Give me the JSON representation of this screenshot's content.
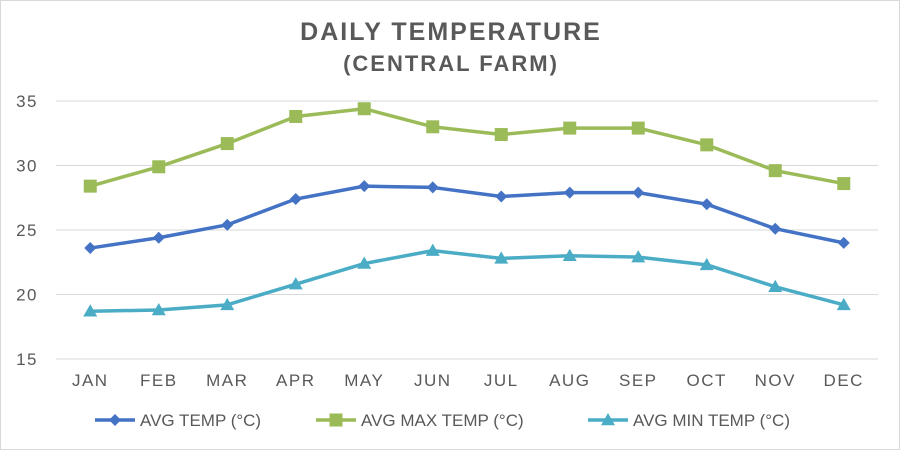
{
  "chart_data": {
    "type": "line",
    "title": "DAILY TEMPERATURE",
    "subtitle": "(CENTRAL FARM)",
    "categories": [
      "JAN",
      "FEB",
      "MAR",
      "APR",
      "MAY",
      "JUN",
      "JUL",
      "AUG",
      "SEP",
      "OCT",
      "NOV",
      "DEC"
    ],
    "ylim": [
      15,
      35
    ],
    "yticks": [
      "15",
      "20",
      "25",
      "30",
      "35"
    ],
    "grid": true,
    "legend_position": "bottom",
    "series": [
      {
        "name": "AVG TEMP (°C)",
        "color": "#4472c4",
        "marker": "diamond",
        "values": [
          23.6,
          24.4,
          25.4,
          27.4,
          28.4,
          28.3,
          27.6,
          27.9,
          27.9,
          27.0,
          25.1,
          24.0
        ]
      },
      {
        "name": "AVG MAX TEMP (°C)",
        "color": "#9bbb59",
        "marker": "square",
        "values": [
          28.4,
          29.9,
          31.7,
          33.8,
          34.4,
          33.0,
          32.4,
          32.9,
          32.9,
          31.6,
          29.6,
          28.6
        ]
      },
      {
        "name": "AVG MIN TEMP (°C)",
        "color": "#4bacc6",
        "marker": "triangle",
        "values": [
          18.7,
          18.8,
          19.2,
          20.8,
          22.4,
          23.4,
          22.8,
          23.0,
          22.9,
          22.3,
          20.6,
          19.2
        ]
      }
    ]
  }
}
